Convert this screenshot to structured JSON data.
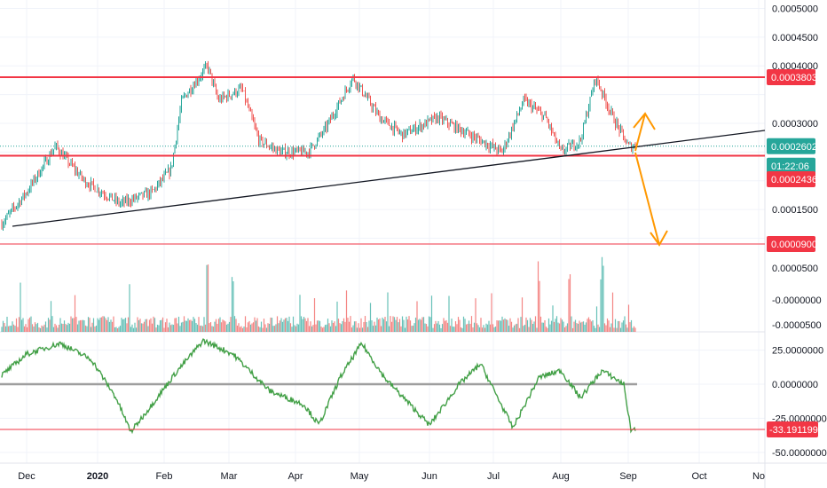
{
  "colors": {
    "up": "#26a69a",
    "down": "#ef5350",
    "level": "#f23645",
    "trendline": "#131722",
    "arrow": "#ff9800",
    "indicator": "#43a047",
    "zeroline": "#9e9e9e",
    "last_price": "#26a69a",
    "grid": "#f0f3fa"
  },
  "price_axis": {
    "ticks": [
      "0.0005000",
      "0.0004500",
      "0.0004000",
      "0.0003000",
      "0.0001500"
    ],
    "range": [
      6e-05,
      0.00052
    ]
  },
  "price_levels": [
    {
      "label": "0.0003803",
      "value": 0.0003803
    },
    {
      "label": "0.0002436",
      "value": 0.0002436
    },
    {
      "label": "0.0000900",
      "value": 9e-05
    }
  ],
  "last_price": {
    "label": "0.0002602",
    "value": 0.0002602,
    "countdown": "01:22:06"
  },
  "volume_axis": {
    "ticks": [
      "0.0000500",
      "-0.0000000",
      "-0.0000500"
    ]
  },
  "oscillator_axis": {
    "ticks": [
      "25.0000000",
      "0.0000000",
      "-25.0000000",
      "-50.0000000"
    ],
    "range": [
      -55,
      38
    ],
    "current_label": "-33.1911995",
    "current_value": -33.19
  },
  "time_axis": {
    "ticks": [
      "Dec",
      "2020",
      "Feb",
      "Mar",
      "Apr",
      "May",
      "Jun",
      "Jul",
      "Aug",
      "Sep",
      "Oct",
      "No"
    ]
  },
  "chart_data": {
    "type": "candlestick",
    "time_ticks": [
      "Dec",
      "2020",
      "Feb",
      "Mar",
      "Apr",
      "May",
      "Jun",
      "Jul",
      "Aug",
      "Sep",
      "Oct",
      "No"
    ],
    "price_anchors": [
      [
        "Nov 20",
        0.00012
      ],
      [
        "Dec 1",
        0.00018
      ],
      [
        "Dec 13",
        0.00026
      ],
      [
        "Dec 25",
        0.0002
      ],
      [
        "Jan 10",
        0.00016
      ],
      [
        "Jan 25",
        0.00018
      ],
      [
        "Feb 3",
        0.00022
      ],
      [
        "Feb 8",
        0.00034
      ],
      [
        "Feb 20",
        0.0004
      ],
      [
        "Feb 25",
        0.00034
      ],
      [
        "Mar 7",
        0.00036
      ],
      [
        "Mar 15",
        0.00027
      ],
      [
        "Mar 25",
        0.00025
      ],
      [
        "Apr 7",
        0.00025
      ],
      [
        "Apr 15",
        0.00029
      ],
      [
        "Apr 28",
        0.00038
      ],
      [
        "May 10",
        0.00031
      ],
      [
        "May 20",
        0.00028
      ],
      [
        "Jun 5",
        0.00031
      ],
      [
        "Jun 20",
        0.00028
      ],
      [
        "Jul 5",
        0.00025
      ],
      [
        "Jul 15",
        0.00034
      ],
      [
        "Jul 25",
        0.00031
      ],
      [
        "Aug 1",
        0.00025
      ],
      [
        "Aug 10",
        0.00027
      ],
      [
        "Aug 17",
        0.00038
      ],
      [
        "Aug 25",
        0.00031
      ],
      [
        "Sep 1",
        0.00026
      ]
    ],
    "oscillator_anchors": [
      [
        "Nov 20",
        5
      ],
      [
        "Dec 1",
        22
      ],
      [
        "Dec 15",
        30
      ],
      [
        "Dec 28",
        18
      ],
      [
        "Jan 8",
        -10
      ],
      [
        "Jan 15",
        -35
      ],
      [
        "Jan 25",
        -15
      ],
      [
        "Feb 5",
        8
      ],
      [
        "Feb 18",
        32
      ],
      [
        "Mar 3",
        22
      ],
      [
        "Mar 20",
        -5
      ],
      [
        "Apr 5",
        -15
      ],
      [
        "Apr 12",
        -30
      ],
      [
        "Apr 22",
        5
      ],
      [
        "May 2",
        30
      ],
      [
        "May 12",
        5
      ],
      [
        "Jun 1",
        -30
      ],
      [
        "Jun 15",
        0
      ],
      [
        "Jun 25",
        15
      ],
      [
        "Jul 10",
        -32
      ],
      [
        "Jul 22",
        5
      ],
      [
        "Aug 1",
        10
      ],
      [
        "Aug 10",
        -10
      ],
      [
        "Aug 20",
        10
      ],
      [
        "Aug 30",
        0
      ],
      [
        "Sep 2",
        -33
      ]
    ],
    "volume_spikes": [
      "Feb 20",
      "Mar 3",
      "Jul 22",
      "Aug 5",
      "Aug 20"
    ]
  }
}
